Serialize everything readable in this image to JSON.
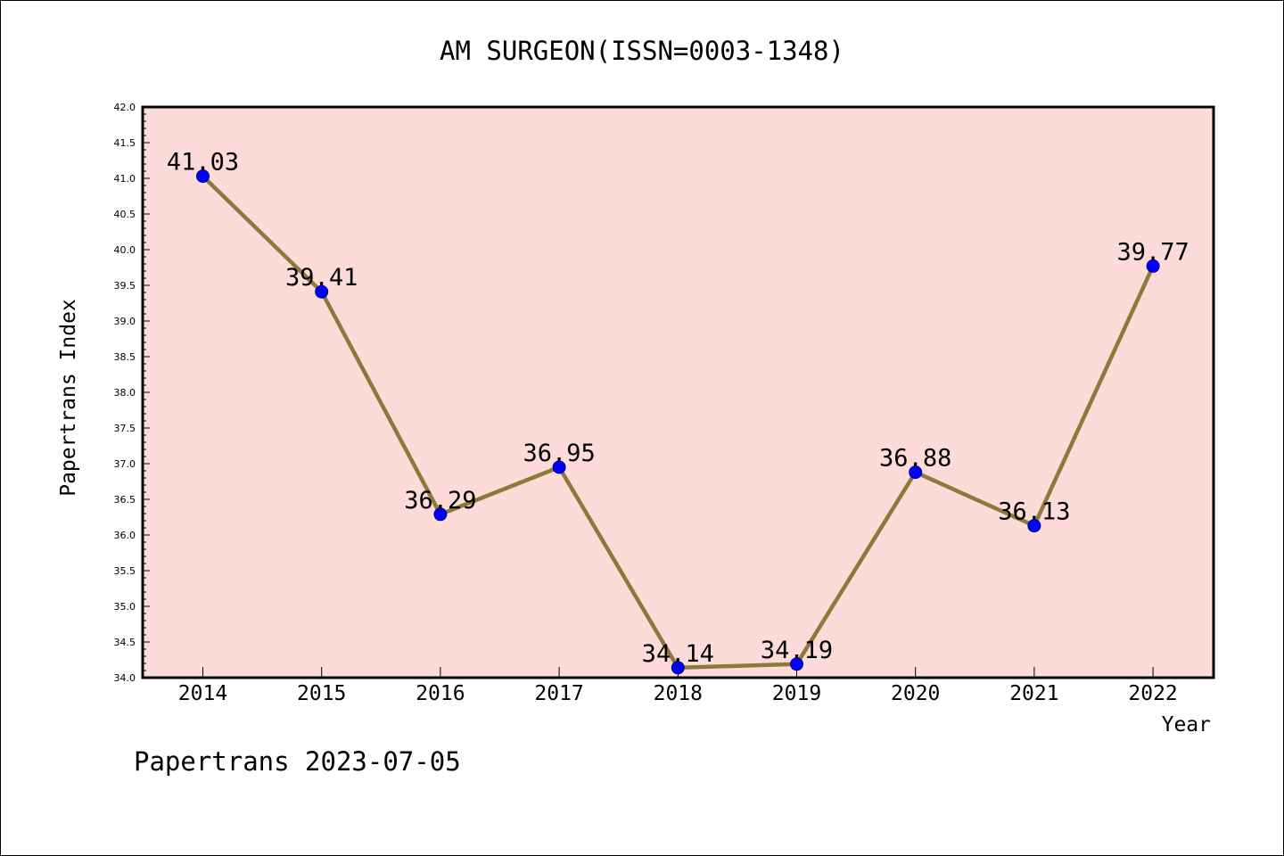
{
  "chart_data": {
    "type": "line",
    "title": "AM SURGEON(ISSN=0003-1348)",
    "xlabel": "Year",
    "ylabel": "Papertrans Index",
    "footer": "Papertrans 2023-07-05",
    "x": [
      "2014",
      "2015",
      "2016",
      "2017",
      "2018",
      "2019",
      "2020",
      "2021",
      "2022"
    ],
    "values": [
      41.03,
      39.41,
      36.29,
      36.95,
      34.14,
      34.19,
      36.88,
      36.13,
      39.77
    ],
    "value_labels": [
      "41.03",
      "39.41",
      "36.29",
      "36.95",
      "34.14",
      "34.19",
      "36.88",
      "36.13",
      "39.77"
    ],
    "ylim": [
      34.0,
      42.0
    ],
    "yticks": [
      "34.0",
      "34.5",
      "35.0",
      "35.5",
      "36.0",
      "36.5",
      "37.0",
      "37.5",
      "38.0",
      "38.5",
      "39.0",
      "39.5",
      "40.0",
      "40.5",
      "41.0",
      "41.5",
      "42.0"
    ],
    "grid": false,
    "colors": {
      "plot_background": "#fddbd9",
      "line": "#8b7a3a",
      "marker": "#0000ff",
      "marker_edge": "#00008b"
    }
  }
}
